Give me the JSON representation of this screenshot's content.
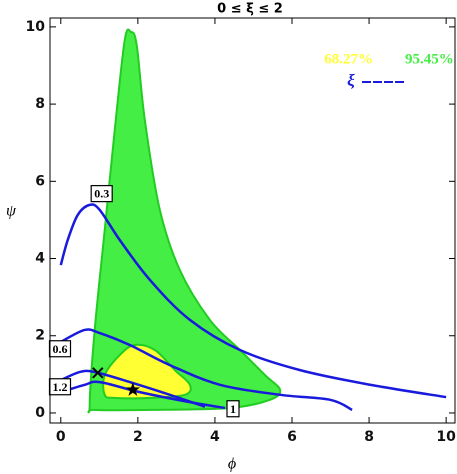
{
  "chart_data": {
    "type": "contour",
    "title": "0 ≤ ξ ≤ 2",
    "xlabel": "ϕ",
    "ylabel": "ψ",
    "xlim": [
      -0.28,
      10.23
    ],
    "ylim": [
      -0.26,
      10.23
    ],
    "xticks": [
      0,
      2,
      4,
      6,
      8,
      10
    ],
    "yticks": [
      0,
      2,
      4,
      6,
      8,
      10
    ],
    "regions": [
      {
        "name": "95.45%",
        "color": "#44ee44",
        "edge": "#22cc22",
        "x": [
          0.75,
          0.88,
          1.14,
          1.4,
          1.66,
          1.82,
          1.97,
          2.18,
          2.57,
          3.09,
          3.87,
          4.65,
          5.3,
          5.69,
          5.43,
          4.39,
          2.31,
          0.88
        ],
        "y": [
          0.2,
          2.15,
          4.74,
          7.33,
          9.66,
          9.87,
          9.53,
          7.59,
          5.26,
          3.7,
          2.41,
          1.63,
          0.98,
          0.6,
          0.34,
          0.13,
          0.08,
          0.08
        ]
      },
      {
        "name": "68.27%",
        "color": "#ffff33",
        "edge": "#22cc22",
        "x": [
          1.14,
          1.14,
          1.53,
          1.92,
          2.44,
          2.96,
          3.35,
          3.22,
          2.31,
          1.4
        ],
        "y": [
          0.47,
          0.98,
          1.5,
          1.76,
          1.63,
          1.11,
          0.73,
          0.47,
          0.39,
          0.39
        ]
      }
    ],
    "line_name": "ξ",
    "line_color": "#1a1add",
    "curves": [
      {
        "label": "0.3",
        "x": [
          0,
          0.18,
          0.44,
          0.75,
          1.01,
          1.53,
          2.31,
          3.35,
          4.65,
          6.21,
          8.03,
          10
        ],
        "y": [
          3.83,
          4.48,
          5.13,
          5.39,
          5.26,
          4.48,
          3.45,
          2.41,
          1.63,
          1.11,
          0.73,
          0.41
        ]
      },
      {
        "label": "0.6",
        "x": [
          0,
          0.62,
          1.01,
          1.79,
          2.83,
          4.13,
          5.69,
          6.99,
          7.56
        ],
        "y": [
          1.84,
          2.15,
          2.07,
          1.76,
          1.24,
          0.73,
          0.47,
          0.34,
          0.08
        ]
      },
      {
        "label": "1.2",
        "x": [
          0,
          0.49,
          0.88,
          1.79,
          2.83,
          3.74
        ],
        "y": [
          0.85,
          1.06,
          1.06,
          0.8,
          0.47,
          0.16
        ]
      },
      {
        "label": "1",
        "x": [
          0,
          0.62,
          1.01,
          2.05,
          3.35,
          4.26
        ],
        "y": [
          0.54,
          0.73,
          0.8,
          0.54,
          0.28,
          0.13
        ]
      }
    ],
    "markers": [
      {
        "x": 1.87,
        "y": 0.6,
        "symbol": "star"
      },
      {
        "x": 0.96,
        "y": 1.04,
        "symbol": "cross"
      }
    ]
  }
}
